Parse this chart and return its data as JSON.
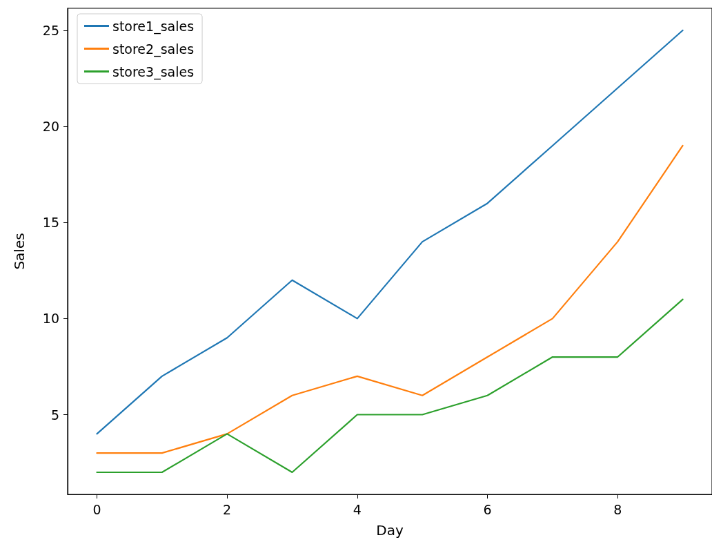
{
  "chart_data": {
    "type": "line",
    "xlabel": "Day",
    "ylabel": "Sales",
    "x": [
      0,
      1,
      2,
      3,
      4,
      5,
      6,
      7,
      8,
      9
    ],
    "series": [
      {
        "name": "store1_sales",
        "color": "#1f77b4",
        "values": [
          4,
          7,
          9,
          12,
          10,
          14,
          16,
          19,
          22,
          25
        ]
      },
      {
        "name": "store2_sales",
        "color": "#ff7f0e",
        "values": [
          3,
          3,
          4,
          6,
          7,
          6,
          8,
          10,
          14,
          19
        ]
      },
      {
        "name": "store3_sales",
        "color": "#2ca02c",
        "values": [
          2,
          2,
          4,
          2,
          5,
          5,
          6,
          8,
          8,
          11
        ]
      }
    ],
    "xlim": [
      -0.45,
      9.45
    ],
    "ylim": [
      0.85,
      26.15
    ],
    "xticks": [
      0,
      2,
      4,
      6,
      8
    ],
    "yticks": [
      5,
      10,
      15,
      20,
      25
    ],
    "grid": false,
    "legend": "top left",
    "marker": "none"
  }
}
